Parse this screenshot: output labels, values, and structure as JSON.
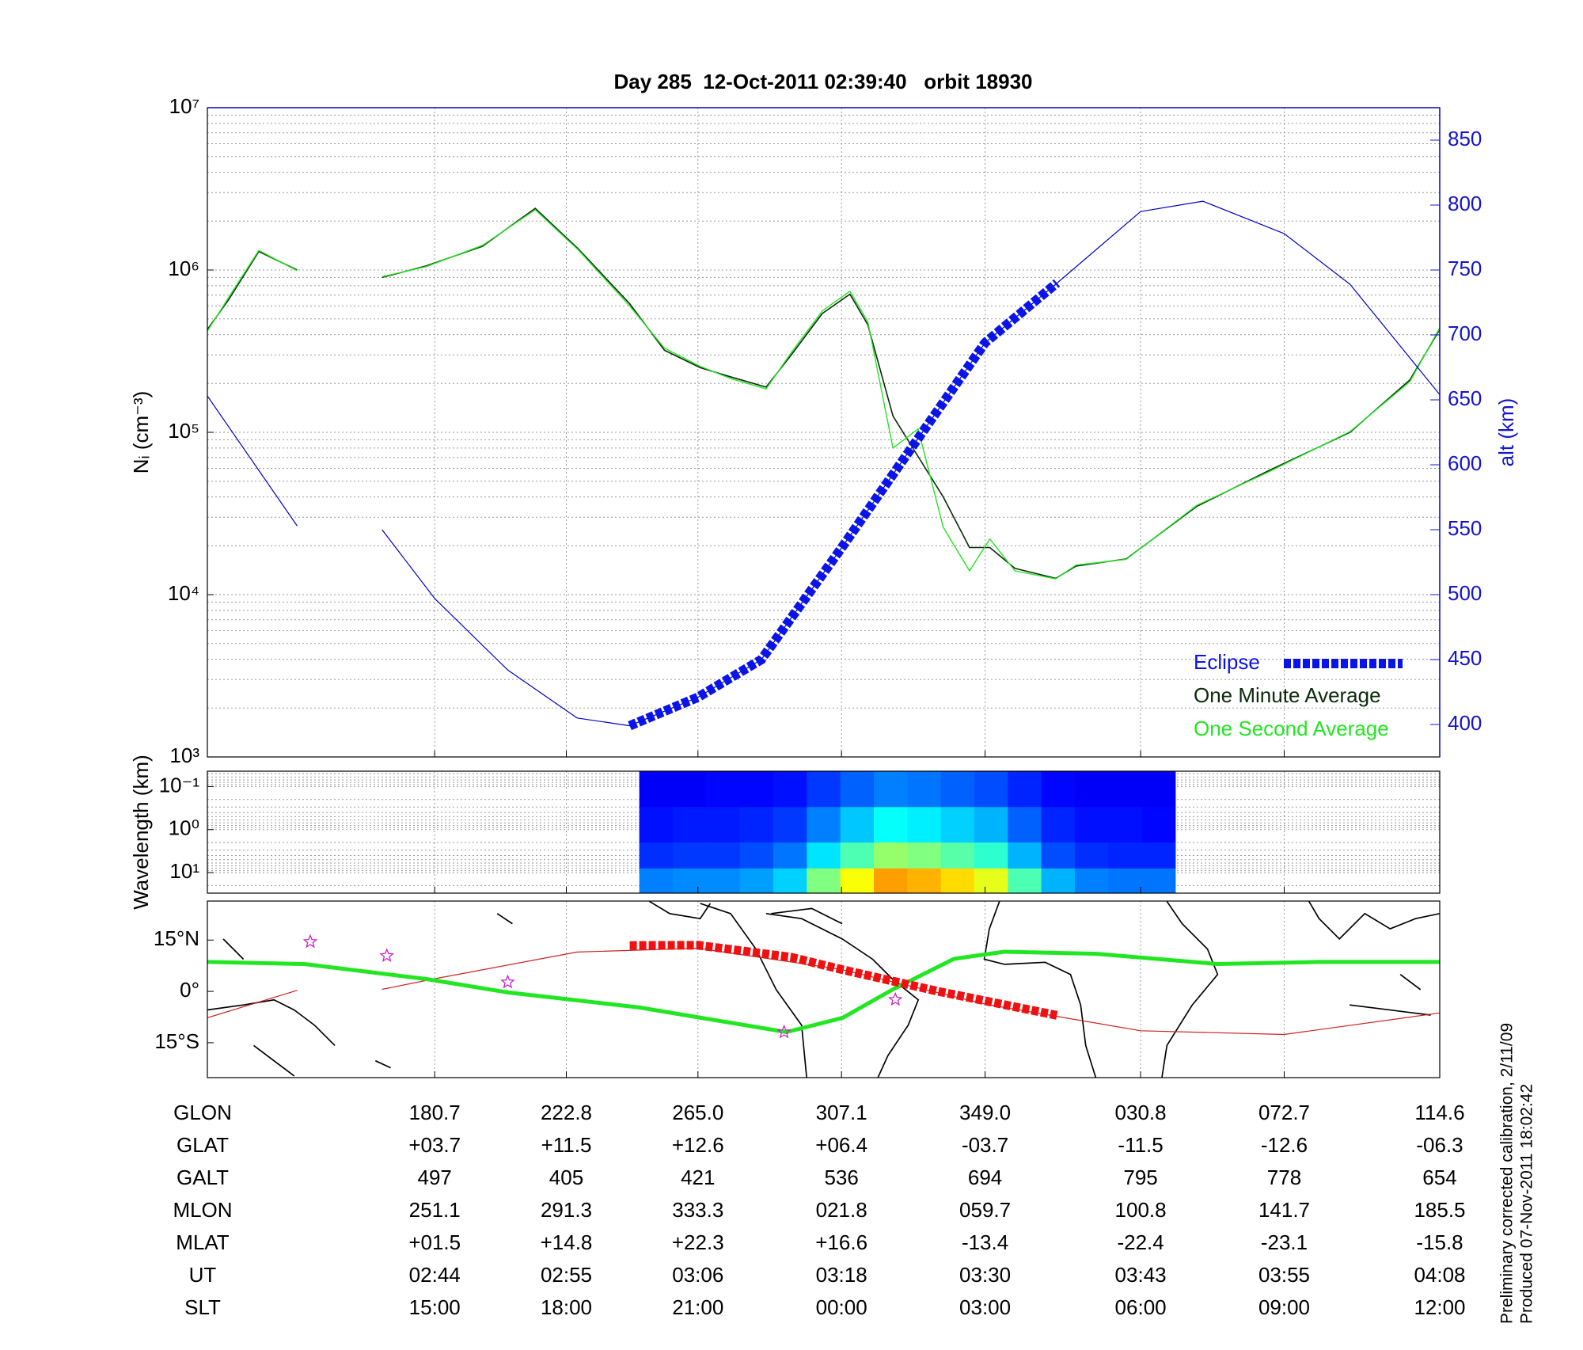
{
  "chart_data": [
    {
      "type": "line",
      "title": "Day 285  12-Oct-2011 02:39:40   orbit 18930",
      "ylabel": "Nᵢ (cm⁻³)",
      "y2label": "alt (km)",
      "log": true,
      "grid": true,
      "legend": "lower right",
      "xlim": [
        25,
        128
      ],
      "xticks": [
        44,
        55,
        66,
        78,
        90,
        103,
        115,
        128
      ],
      "ylim": [
        1000,
        10000000
      ],
      "yticks": [
        {
          "value": 1000,
          "label": "10³"
        },
        {
          "value": 10000,
          "label": "10⁴"
        },
        {
          "value": 100000,
          "label": "10⁵"
        },
        {
          "value": 1000000,
          "label": "10⁶"
        },
        {
          "value": 10000000,
          "label": "10⁷"
        }
      ],
      "y2lim": [
        375,
        875
      ],
      "y2ticks": [
        400,
        450,
        500,
        550,
        600,
        650,
        700,
        750,
        800,
        850
      ],
      "series": [
        {
          "name": "Eclipse",
          "color": "#0a14e6",
          "axis": "y2",
          "linestyle": "dashed",
          "linewidth": 12,
          "x": [
            60.3,
            66,
            71.3,
            78,
            90,
            96
          ],
          "values": [
            399,
            421,
            450,
            536,
            694,
            740
          ]
        },
        {
          "name": "One Minute Average",
          "color": "#0a2a0a",
          "linewidth": 1.6,
          "x": [
            25,
            26.8,
            29.3,
            32.5,
            36,
            39.6,
            43.3,
            48,
            52.4,
            56,
            60.3,
            63.2,
            66.2,
            68.7,
            71.7,
            73.8,
            76.4,
            78.7,
            80.2,
            82.3,
            84.4,
            86.5,
            88.7,
            90.4,
            92.5,
            95.9,
            97.6,
            101.8,
            107.7,
            113.7,
            120.5,
            125.5,
            128
          ],
          "values": [
            430000,
            660000,
            1300000,
            1000000,
            null,
            900000,
            1060000,
            1400000,
            2400000,
            1350000,
            620000,
            320000,
            250000,
            220000,
            190000,
            300000,
            540000,
            710000,
            460000,
            126000,
            71000,
            40000,
            19500,
            19500,
            14500,
            12600,
            15000,
            16600,
            35000,
            58000,
            100000,
            210000,
            430000
          ]
        },
        {
          "name": "One Second Average",
          "color": "#22e622",
          "linewidth": 1.4,
          "x": [
            25,
            26.8,
            29.3,
            32.5,
            36,
            39.6,
            43.3,
            48,
            52.4,
            56,
            60.3,
            63.2,
            66.2,
            68.7,
            71.7,
            73.8,
            76.4,
            78.7,
            80.2,
            82.3,
            84.4,
            86.5,
            88.7,
            90.4,
            92.5,
            95.9,
            97.6,
            101.8,
            107.7,
            113.7,
            120.5,
            125.5,
            128
          ],
          "values": [
            420000,
            680000,
            1320000,
            990000,
            null,
            910000,
            1050000,
            1420000,
            2350000,
            1330000,
            600000,
            330000,
            255000,
            215000,
            185000,
            310000,
            560000,
            740000,
            480000,
            80000,
            105000,
            26000,
            14000,
            22000,
            14000,
            12500,
            15200,
            16500,
            35500,
            57000,
            101000,
            205000,
            440000
          ]
        },
        {
          "color": "#0000cc",
          "axis": "y2",
          "linewidth": 1.2,
          "x": [
            25,
            32.5,
            36,
            39.6,
            44,
            50.1,
            55.9,
            60.3,
            66,
            71.3,
            78,
            90,
            95.9,
            103,
            108.2,
            115,
            120.5,
            128
          ],
          "values": [
            653,
            553,
            null,
            550,
            497,
            442,
            405,
            399,
            421,
            450,
            536,
            694,
            739,
            795,
            803,
            778,
            739,
            654
          ]
        }
      ]
    },
    {
      "type": "heatmap",
      "ylabel": "Wavelength (km)",
      "log": true,
      "colormap": "jet",
      "xlim": [
        25,
        128
      ],
      "xticks": [
        44,
        55,
        66,
        78,
        90,
        103,
        115,
        128
      ],
      "ylim": [
        30,
        0.044
      ],
      "yticks": [
        {
          "value": 0.1,
          "label": "10⁻¹"
        },
        {
          "value": 1,
          "label": "10⁰"
        },
        {
          "value": 10,
          "label": "10¹"
        }
      ],
      "x_edges": [
        61.1,
        63.9,
        66.7,
        69.5,
        72.3,
        75.1,
        77.9,
        80.7,
        83.5,
        86.3,
        89.1,
        91.9,
        94.7,
        97.5,
        100.3,
        103.1,
        105.9
      ],
      "y_edges": [
        0.044,
        0.3,
        2,
        8,
        30
      ],
      "values": [
        [
          0.12,
          0.12,
          0.13,
          0.13,
          0.14,
          0.18,
          0.22,
          0.25,
          0.24,
          0.22,
          0.2,
          0.16,
          0.13,
          0.12,
          0.12,
          0.12
        ],
        [
          0.14,
          0.15,
          0.15,
          0.16,
          0.18,
          0.25,
          0.32,
          0.38,
          0.36,
          0.33,
          0.3,
          0.22,
          0.16,
          0.14,
          0.14,
          0.13
        ],
        [
          0.17,
          0.18,
          0.18,
          0.2,
          0.24,
          0.35,
          0.45,
          0.52,
          0.5,
          0.46,
          0.42,
          0.3,
          0.2,
          0.17,
          0.16,
          0.16
        ],
        [
          0.25,
          0.26,
          0.26,
          0.28,
          0.33,
          0.5,
          0.62,
          0.72,
          0.7,
          0.66,
          0.6,
          0.45,
          0.3,
          0.25,
          0.24,
          0.24
        ]
      ]
    },
    {
      "type": "map",
      "xlim": [
        25,
        128
      ],
      "xticks": [
        44,
        55,
        66,
        78,
        90,
        103,
        115,
        128
      ],
      "ylim": [
        -25.2,
        26.4
      ],
      "yticks": [
        {
          "value": -15,
          "label": "15°S"
        },
        {
          "value": 0,
          "label": "0°"
        },
        {
          "value": 15,
          "label": "15°N"
        }
      ],
      "series": [
        {
          "color": "#cc2222",
          "linewidth": 1.2,
          "x": [
            25,
            32.5,
            36,
            39.6,
            44,
            55.9,
            66,
            78,
            90,
            103,
            115,
            128
          ],
          "values": [
            -7.7,
            0.3,
            null,
            0.6,
            3.7,
            11.5,
            12.6,
            6.4,
            -3.7,
            -11.5,
            -12.6,
            -6.3
          ]
        },
        {
          "color": "#22e622",
          "linewidth": 5,
          "x": [
            25,
            33.1,
            43.3,
            50.1,
            61.1,
            73.4,
            78.1,
            82.3,
            87.4,
            91.6,
            99.3,
            109.4,
            117.9,
            128
          ],
          "values": [
            8.6,
            8.0,
            3.6,
            -0.3,
            -4.7,
            -11.9,
            -7.7,
            0.6,
            9.5,
            11.6,
            11.0,
            8.0,
            8.6,
            8.6
          ]
        },
        {
          "color": "#ee1111",
          "linestyle": "dashed",
          "linewidth": 11,
          "x": [
            60.3,
            66,
            73.8,
            78,
            86.1,
            96
          ],
          "values": [
            13.4,
            13.5,
            10,
            6.4,
            0,
            -7
          ]
        }
      ],
      "points": {
        "marker": "star",
        "color": "#cc22cc",
        "x": [
          33.6,
          40,
          50.1,
          73.2,
          82.5
        ],
        "y": [
          14.5,
          10.4,
          2.7,
          -11.9,
          -2.4
        ]
      }
    }
  ],
  "table": {
    "rows": [
      [
        "GLON",
        "180.7",
        "222.8",
        "265.0",
        "307.1",
        "349.0",
        "030.8",
        "072.7",
        "114.6"
      ],
      [
        "GLAT",
        "+03.7",
        "+11.5",
        "+12.6",
        "+06.4",
        "-03.7",
        "-11.5",
        "-12.6",
        "-06.3"
      ],
      [
        "GALT",
        "497",
        "405",
        "421",
        "536",
        "694",
        "795",
        "778",
        "654"
      ],
      [
        "MLON",
        "251.1",
        "291.3",
        "333.3",
        "021.8",
        "059.7",
        "100.8",
        "141.7",
        "185.5"
      ],
      [
        "MLAT",
        "+01.5",
        "+14.8",
        "+22.3",
        "+16.6",
        "-13.4",
        "-22.4",
        "-23.1",
        "-15.8"
      ],
      [
        "UT",
        "02:44",
        "02:55",
        "03:06",
        "03:18",
        "03:30",
        "03:43",
        "03:55",
        "04:08"
      ],
      [
        "SLT",
        "15:00",
        "18:00",
        "21:00",
        "00:00",
        "03:00",
        "06:00",
        "09:00",
        "12:00"
      ]
    ]
  },
  "footer": [
    "Preliminary corrected calibration, 2/11/09",
    "Produced 07-Nov-2011 18:02:42"
  ]
}
